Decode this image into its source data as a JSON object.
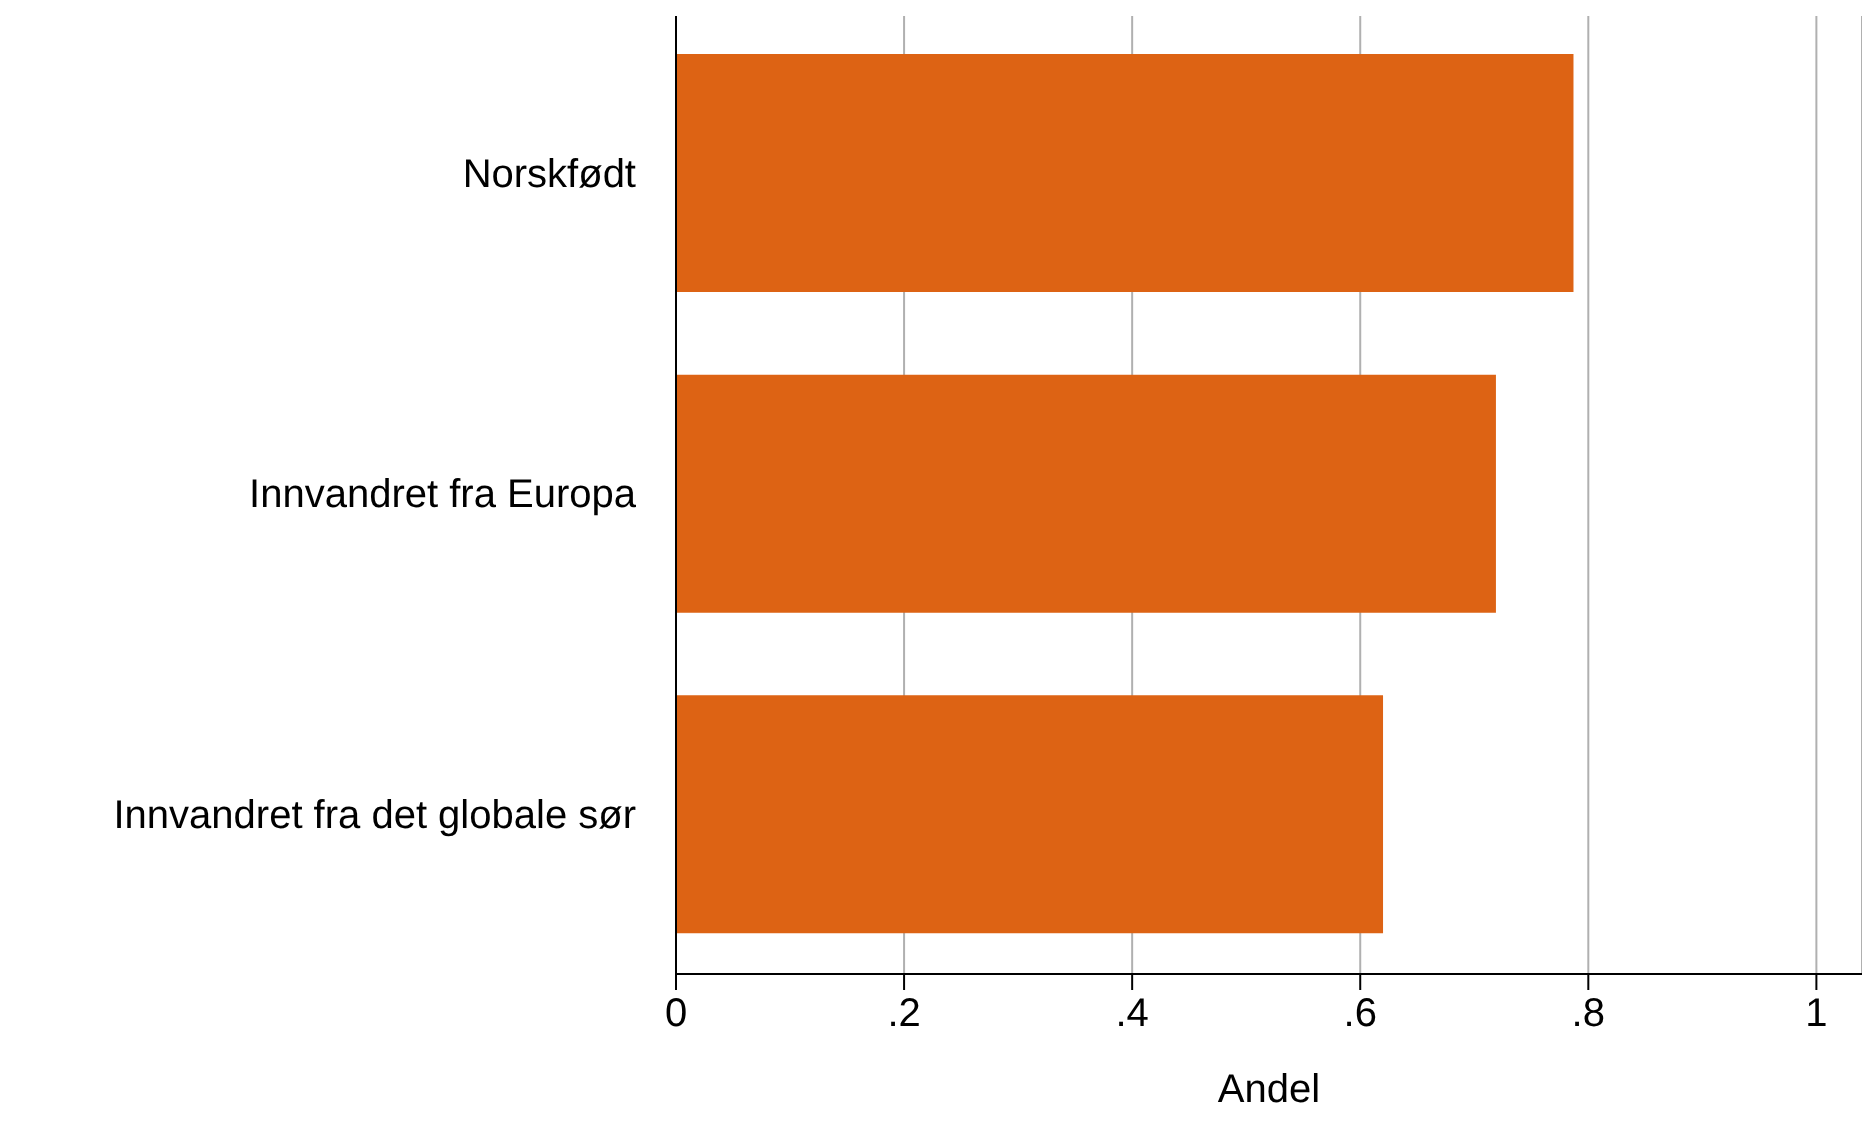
{
  "chart_data": {
    "type": "bar",
    "orientation": "horizontal",
    "categories": [
      "Norskfødt",
      "Innvandret fra Europa",
      "Innvandret fra det globale sør"
    ],
    "values": [
      0.787,
      0.719,
      0.62
    ],
    "color": "#dd6314",
    "xlabel": "Andel",
    "xlim": [
      0,
      1.04
    ],
    "xticks": [
      0,
      {
        "value": 0.2,
        "label": ".2"
      },
      {
        "value": 0.4,
        "label": ".4"
      },
      {
        "value": 0.6,
        "label": ".6"
      },
      {
        "value": 0.8,
        "label": ".8"
      },
      1
    ],
    "grid": "x"
  }
}
